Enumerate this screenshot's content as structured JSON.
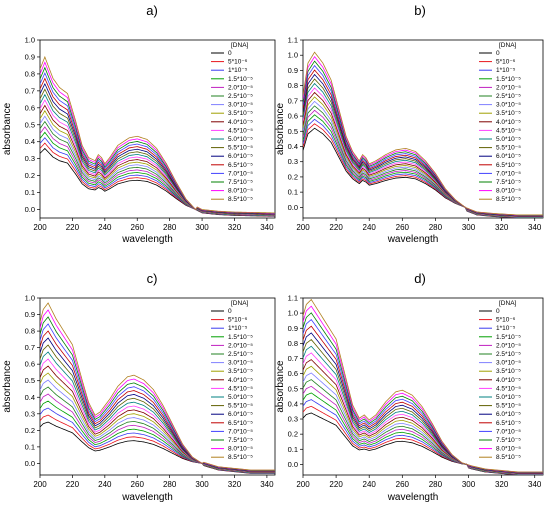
{
  "legend_title": "[DNA]",
  "legend_labels": [
    "0",
    "5*10⁻⁶",
    "1*10⁻⁵",
    "1.5*10⁻⁵",
    "2.0*10⁻⁵",
    "2.5*10⁻⁵",
    "3.0*10⁻⁵",
    "3.5*10⁻⁵",
    "4.0*10⁻⁵",
    "4.5*10⁻⁵",
    "5.0*10⁻⁵",
    "5.5*10⁻⁵",
    "6.0*10⁻⁵",
    "6.5*10⁻⁵",
    "7.0*10⁻⁵",
    "7.5*10⁻⁵",
    "8.0*10⁻⁵",
    "8.5*10⁻⁵"
  ],
  "series_colors": [
    "#000000",
    "#e8141c",
    "#3b3bf0",
    "#00a000",
    "#c020c0",
    "#208020",
    "#8080ff",
    "#a0a000",
    "#800000",
    "#ff40ff",
    "#008080",
    "#606000",
    "#000080",
    "#c00000",
    "#4040ff",
    "#008000",
    "#ff00ff",
    "#b08020"
  ],
  "chart_data": [
    {
      "panel": "a)",
      "type": "line",
      "xlabel": "wavelength",
      "ylabel": "absorbance",
      "xlim": [
        200,
        345
      ],
      "ylim": [
        -0.05,
        1.0
      ],
      "x_ticks": [
        200,
        220,
        240,
        260,
        280,
        300,
        320,
        340
      ],
      "y_ticks": [
        0.0,
        0.1,
        0.2,
        0.3,
        0.4,
        0.5,
        0.6,
        0.7,
        0.8,
        0.9,
        1.0
      ],
      "peak_nm": 203,
      "shape": {
        "x": [
          200,
          203,
          208,
          212,
          217,
          222,
          226,
          230,
          234,
          236,
          238,
          240,
          243,
          248,
          255,
          260,
          266,
          272,
          278,
          284,
          290,
          296,
          300,
          310,
          320,
          345
        ],
        "f": [
          0.92,
          1.0,
          0.86,
          0.8,
          0.76,
          0.58,
          0.42,
          0.34,
          0.32,
          0.36,
          0.34,
          0.3,
          0.34,
          0.42,
          0.47,
          0.48,
          0.46,
          0.4,
          0.3,
          0.18,
          0.07,
          0.0,
          -0.02,
          -0.03,
          -0.035,
          -0.04
        ]
      },
      "start": [
        0.36,
        0.9
      ],
      "min_dip": [
        0.0,
        0.02
      ]
    },
    {
      "panel": "b)",
      "type": "line",
      "xlabel": "wavelength",
      "ylabel": "absorbance",
      "xlim": [
        200,
        345
      ],
      "ylim": [
        -0.07,
        1.1
      ],
      "x_ticks": [
        200,
        220,
        240,
        260,
        280,
        300,
        320,
        340
      ],
      "y_ticks": [
        0.0,
        0.1,
        0.2,
        0.3,
        0.4,
        0.5,
        0.6,
        0.7,
        0.8,
        0.9,
        1.0,
        1.1
      ],
      "peak_nm": 207,
      "shape": {
        "x": [
          200,
          203,
          207,
          212,
          217,
          222,
          226,
          230,
          234,
          236,
          238,
          240,
          244,
          250,
          256,
          262,
          268,
          274,
          280,
          286,
          292,
          298,
          305,
          315,
          330,
          345
        ],
        "f": [
          0.72,
          0.93,
          1.0,
          0.93,
          0.82,
          0.62,
          0.46,
          0.36,
          0.3,
          0.34,
          0.32,
          0.28,
          0.3,
          0.34,
          0.37,
          0.38,
          0.36,
          0.3,
          0.22,
          0.12,
          0.05,
          0.0,
          -0.03,
          -0.04,
          -0.05,
          -0.05
        ]
      },
      "start": [
        0.52,
        1.02
      ],
      "min_dip": [
        -0.02,
        0.0
      ]
    },
    {
      "panel": "c)",
      "type": "line",
      "xlabel": "wavelength",
      "ylabel": "absorbance",
      "xlim": [
        200,
        345
      ],
      "ylim": [
        -0.07,
        1.0
      ],
      "x_ticks": [
        200,
        220,
        240,
        260,
        280,
        300,
        320,
        340
      ],
      "y_ticks": [
        0.0,
        0.1,
        0.2,
        0.3,
        0.4,
        0.5,
        0.6,
        0.7,
        0.8,
        0.9,
        1.0
      ],
      "peak_nm": 205,
      "shape": {
        "x": [
          200,
          202,
          205,
          210,
          215,
          220,
          226,
          230,
          234,
          237,
          240,
          243,
          248,
          254,
          258,
          264,
          270,
          276,
          282,
          288,
          294,
          300,
          310,
          320,
          330,
          345
        ],
        "f": [
          0.88,
          0.96,
          1.0,
          0.9,
          0.82,
          0.74,
          0.52,
          0.38,
          0.3,
          0.32,
          0.36,
          0.4,
          0.48,
          0.54,
          0.55,
          0.52,
          0.46,
          0.36,
          0.24,
          0.12,
          0.04,
          0.0,
          -0.03,
          -0.04,
          -0.05,
          -0.05
        ]
      },
      "start": [
        0.25,
        0.97
      ],
      "min_dip": [
        -0.01,
        0.01
      ]
    },
    {
      "panel": "d)",
      "type": "line",
      "xlabel": "wavelength",
      "ylabel": "absorbance",
      "xlim": [
        200,
        345
      ],
      "ylim": [
        -0.07,
        1.1
      ],
      "x_ticks": [
        200,
        220,
        240,
        260,
        280,
        300,
        320,
        340
      ],
      "y_ticks": [
        0.0,
        0.1,
        0.2,
        0.3,
        0.4,
        0.5,
        0.6,
        0.7,
        0.8,
        0.9,
        1.0,
        1.1
      ],
      "peak_nm": 205,
      "shape": {
        "x": [
          200,
          202,
          205,
          210,
          215,
          220,
          226,
          230,
          234,
          237,
          240,
          244,
          250,
          256,
          260,
          266,
          272,
          278,
          284,
          290,
          296,
          302,
          310,
          320,
          330,
          345
        ],
        "f": [
          0.9,
          0.97,
          1.0,
          0.92,
          0.84,
          0.76,
          0.52,
          0.36,
          0.28,
          0.3,
          0.27,
          0.3,
          0.38,
          0.44,
          0.45,
          0.42,
          0.35,
          0.25,
          0.14,
          0.06,
          0.01,
          -0.01,
          -0.03,
          -0.04,
          -0.05,
          -0.05
        ]
      },
      "start": [
        0.34,
        1.09
      ],
      "min_dip": [
        -0.02,
        0.0
      ]
    }
  ]
}
